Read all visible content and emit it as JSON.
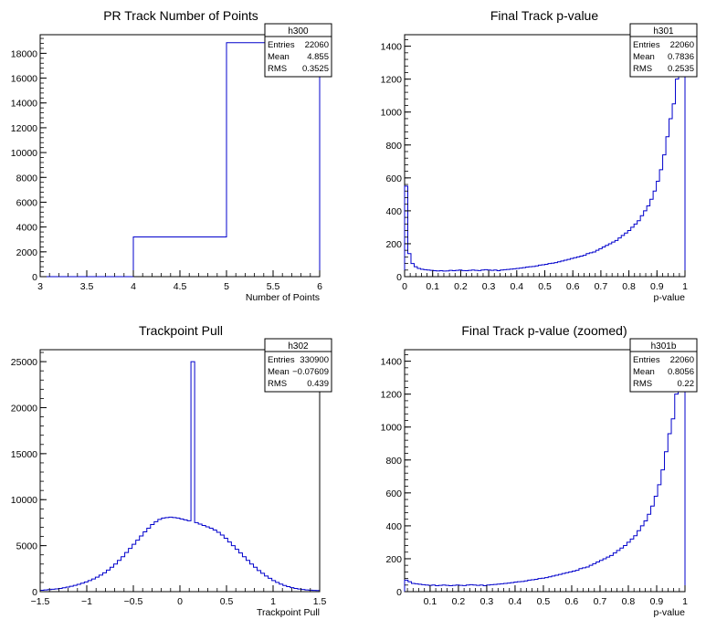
{
  "chart_data": [
    {
      "type": "bar",
      "title": "PR Track Number of Points",
      "xlabel": "Number of Points",
      "ylabel": "",
      "xlim": [
        3,
        6
      ],
      "ylim": [
        0,
        19500
      ],
      "xticks": [
        3,
        3.5,
        4,
        4.5,
        5,
        5.5,
        6
      ],
      "xticklabels": [
        "3",
        "3.5",
        "4",
        "4.5",
        "5",
        "5.5",
        "6"
      ],
      "yticks": [
        0,
        2000,
        4000,
        6000,
        8000,
        10000,
        12000,
        14000,
        16000,
        18000
      ],
      "yticklabels": [
        "0",
        "2000",
        "4000",
        "6000",
        "8000",
        "10000",
        "12000",
        "14000",
        "16000",
        "18000"
      ],
      "bin_edges": [
        3,
        4,
        5,
        6
      ],
      "values": [
        0,
        3200,
        18860
      ],
      "stats": {
        "name": "h300",
        "rows": [
          [
            "Entries",
            "22060"
          ],
          [
            "Mean",
            "4.855"
          ],
          [
            "RMS",
            "0.3525"
          ]
        ]
      }
    },
    {
      "type": "bar",
      "title": "Final Track p-value",
      "xlabel": "p-value",
      "ylabel": "",
      "xlim": [
        0,
        1
      ],
      "ylim": [
        0,
        1470
      ],
      "xticks": [
        0,
        0.1,
        0.2,
        0.3,
        0.4,
        0.5,
        0.6,
        0.7,
        0.8,
        0.9,
        1
      ],
      "xticklabels": [
        "0",
        "0.1",
        "0.2",
        "0.3",
        "0.4",
        "0.5",
        "0.6",
        "0.7",
        "0.8",
        "0.9",
        "1"
      ],
      "yticks": [
        0,
        200,
        400,
        600,
        800,
        1000,
        1200,
        1400
      ],
      "yticklabels": [
        "0",
        "200",
        "400",
        "600",
        "800",
        "1000",
        "1200",
        "1400"
      ],
      "bin_edges_range": [
        0,
        1
      ],
      "values": [
        550,
        140,
        80,
        60,
        50,
        45,
        42,
        40,
        38,
        36,
        35,
        36,
        34,
        35,
        38,
        36,
        38,
        40,
        37,
        36,
        38,
        40,
        38,
        37,
        40,
        42,
        40,
        38,
        40,
        36,
        40,
        42,
        44,
        46,
        48,
        50,
        52,
        55,
        58,
        60,
        62,
        65,
        70,
        72,
        75,
        80,
        82,
        85,
        90,
        95,
        100,
        105,
        110,
        115,
        120,
        125,
        130,
        140,
        145,
        150,
        160,
        170,
        180,
        190,
        200,
        210,
        220,
        235,
        250,
        265,
        280,
        300,
        320,
        340,
        370,
        400,
        430,
        470,
        520,
        580,
        650,
        740,
        850,
        960,
        1050,
        1200,
        1400,
        1470
      ],
      "stats": {
        "name": "h301",
        "rows": [
          [
            "Entries",
            "22060"
          ],
          [
            "Mean",
            "0.7836"
          ],
          [
            "RMS",
            "0.2535"
          ]
        ]
      }
    },
    {
      "type": "bar",
      "title": "Trackpoint Pull",
      "xlabel": "Trackpoint Pull",
      "ylabel": "",
      "xlim": [
        -1.5,
        1.5
      ],
      "ylim": [
        0,
        26300
      ],
      "xticks": [
        -1.5,
        -1,
        -0.5,
        0,
        0.5,
        1,
        1.5
      ],
      "xticklabels": [
        "−1.5",
        "−1",
        "−0.5",
        "0",
        "0.5",
        "1",
        "1.5"
      ],
      "yticks": [
        0,
        5000,
        10000,
        15000,
        20000,
        25000
      ],
      "yticklabels": [
        "0",
        "5000",
        "10000",
        "15000",
        "20000",
        "25000"
      ],
      "bin_edges_range": [
        -1.5,
        1.5
      ],
      "values": [
        150,
        180,
        220,
        260,
        300,
        350,
        420,
        500,
        580,
        680,
        800,
        920,
        1050,
        1200,
        1380,
        1580,
        1800,
        2050,
        2350,
        2650,
        3000,
        3400,
        3800,
        4250,
        4700,
        5150,
        5600,
        6050,
        6500,
        6900,
        7300,
        7600,
        7850,
        8000,
        8050,
        8100,
        8050,
        8000,
        7900,
        7800,
        7700,
        25000,
        7500,
        7350,
        7200,
        7050,
        6900,
        6700,
        6450,
        6150,
        5800,
        5400,
        5000,
        4600,
        4200,
        3800,
        3400,
        3000,
        2650,
        2300,
        2000,
        1700,
        1450,
        1200,
        1000,
        820,
        670,
        540,
        430,
        350,
        280,
        230,
        190,
        160,
        140,
        120
      ],
      "stats": {
        "name": "h302",
        "rows": [
          [
            "Entries",
            "330900"
          ],
          [
            "Mean",
            "−0.07609"
          ],
          [
            "RMS",
            "0.439"
          ]
        ]
      }
    },
    {
      "type": "bar",
      "title": "Final Track p-value (zoomed)",
      "xlabel": "p-value",
      "ylabel": "",
      "xlim": [
        0.01,
        1
      ],
      "ylim": [
        0,
        1470
      ],
      "xticks": [
        0.1,
        0.2,
        0.3,
        0.4,
        0.5,
        0.6,
        0.7,
        0.8,
        0.9,
        1
      ],
      "xticklabels": [
        "0.1",
        "0.2",
        "0.3",
        "0.4",
        "0.5",
        "0.6",
        "0.7",
        "0.8",
        "0.9",
        "1"
      ],
      "yticks": [
        0,
        200,
        400,
        600,
        800,
        1000,
        1200,
        1400
      ],
      "yticklabels": [
        "0",
        "200",
        "400",
        "600",
        "800",
        "1000",
        "1200",
        "1400"
      ],
      "bin_edges_range": [
        0.01,
        1
      ],
      "values": [
        70,
        60,
        50,
        48,
        45,
        42,
        40,
        38,
        40,
        36,
        38,
        40,
        38,
        36,
        38,
        40,
        38,
        37,
        40,
        42,
        40,
        38,
        40,
        36,
        40,
        42,
        44,
        46,
        48,
        50,
        52,
        55,
        58,
        60,
        62,
        65,
        70,
        72,
        75,
        80,
        82,
        85,
        90,
        95,
        100,
        105,
        110,
        115,
        120,
        125,
        130,
        140,
        145,
        150,
        160,
        170,
        180,
        190,
        200,
        210,
        220,
        235,
        250,
        265,
        280,
        300,
        320,
        340,
        370,
        400,
        430,
        470,
        520,
        580,
        650,
        740,
        850,
        960,
        1050,
        1200,
        1400,
        1470
      ],
      "stats": {
        "name": "h301b",
        "rows": [
          [
            "Entries",
            "22060"
          ],
          [
            "Mean",
            "0.8056"
          ],
          [
            "RMS",
            "0.22"
          ]
        ]
      }
    }
  ]
}
